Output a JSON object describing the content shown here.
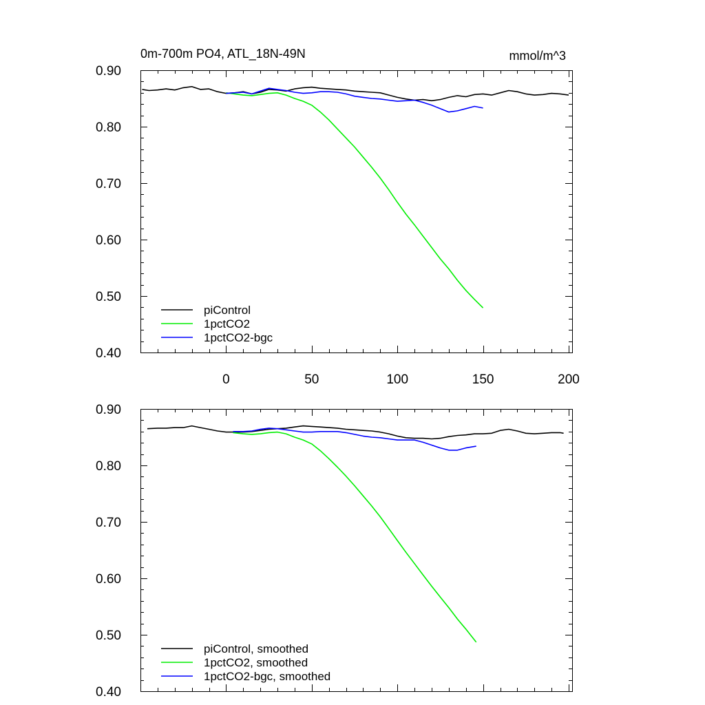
{
  "chart_data": [
    {
      "type": "line",
      "title": "0m-700m PO4, ATL_18N-49N",
      "units": "mmol/m^3",
      "xlim": [
        -50,
        202
      ],
      "ylim": [
        0.4,
        0.9
      ],
      "xticks": [
        "0",
        "50",
        "100",
        "150",
        "200"
      ],
      "yticks": [
        "0.40",
        "0.50",
        "0.60",
        "0.70",
        "0.80",
        "0.90"
      ],
      "legend_position": "bottom-left",
      "grid": false,
      "series": [
        {
          "name": "piControl",
          "color": "#000000",
          "x": [
            -49,
            -45,
            -40,
            -35,
            -30,
            -25,
            -20,
            -15,
            -10,
            -5,
            0,
            5,
            10,
            15,
            20,
            25,
            30,
            35,
            40,
            45,
            50,
            55,
            60,
            65,
            70,
            75,
            80,
            85,
            90,
            95,
            100,
            105,
            110,
            115,
            120,
            125,
            130,
            135,
            140,
            145,
            150,
            155,
            160,
            165,
            170,
            175,
            180,
            185,
            190,
            195,
            200
          ],
          "y": [
            0.866,
            0.864,
            0.865,
            0.867,
            0.865,
            0.869,
            0.871,
            0.866,
            0.867,
            0.862,
            0.859,
            0.86,
            0.862,
            0.858,
            0.861,
            0.866,
            0.865,
            0.863,
            0.867,
            0.869,
            0.87,
            0.868,
            0.867,
            0.866,
            0.865,
            0.863,
            0.862,
            0.861,
            0.86,
            0.856,
            0.852,
            0.849,
            0.847,
            0.848,
            0.846,
            0.848,
            0.852,
            0.855,
            0.853,
            0.857,
            0.858,
            0.856,
            0.86,
            0.864,
            0.862,
            0.858,
            0.856,
            0.857,
            0.859,
            0.858,
            0.856
          ]
        },
        {
          "name": "1pctCO2",
          "color": "#00ee00",
          "x": [
            0,
            5,
            10,
            15,
            20,
            25,
            30,
            35,
            40,
            45,
            50,
            55,
            60,
            65,
            70,
            75,
            80,
            85,
            90,
            95,
            100,
            105,
            110,
            115,
            120,
            125,
            130,
            135,
            140,
            145,
            150
          ],
          "y": [
            0.86,
            0.858,
            0.856,
            0.855,
            0.857,
            0.859,
            0.86,
            0.856,
            0.85,
            0.845,
            0.838,
            0.826,
            0.812,
            0.796,
            0.78,
            0.764,
            0.746,
            0.728,
            0.709,
            0.688,
            0.666,
            0.645,
            0.626,
            0.606,
            0.586,
            0.566,
            0.548,
            0.528,
            0.51,
            0.494,
            0.479
          ]
        },
        {
          "name": "1pctCO2-bgc",
          "color": "#0000ff",
          "x": [
            0,
            5,
            10,
            15,
            20,
            25,
            30,
            35,
            40,
            45,
            50,
            55,
            60,
            65,
            70,
            75,
            80,
            85,
            90,
            95,
            100,
            105,
            110,
            115,
            120,
            125,
            130,
            135,
            140,
            145,
            150
          ],
          "y": [
            0.859,
            0.86,
            0.861,
            0.858,
            0.863,
            0.868,
            0.866,
            0.864,
            0.861,
            0.859,
            0.86,
            0.862,
            0.862,
            0.861,
            0.858,
            0.854,
            0.852,
            0.85,
            0.849,
            0.847,
            0.845,
            0.846,
            0.847,
            0.843,
            0.838,
            0.832,
            0.826,
            0.828,
            0.832,
            0.836,
            0.833
          ]
        }
      ]
    },
    {
      "type": "line",
      "xlim": [
        -50,
        202
      ],
      "ylim": [
        0.4,
        0.9
      ],
      "yticks": [
        "0.40",
        "0.50",
        "0.60",
        "0.70",
        "0.80",
        "0.90"
      ],
      "legend_position": "bottom-left",
      "grid": false,
      "series": [
        {
          "name": "piControl, smoothed",
          "color": "#000000",
          "x": [
            -46,
            -40,
            -35,
            -30,
            -25,
            -20,
            -15,
            -10,
            -5,
            0,
            5,
            10,
            15,
            20,
            25,
            30,
            35,
            40,
            45,
            50,
            55,
            60,
            65,
            70,
            75,
            80,
            85,
            90,
            95,
            100,
            105,
            110,
            115,
            120,
            125,
            130,
            135,
            140,
            145,
            150,
            155,
            160,
            165,
            170,
            175,
            180,
            185,
            190,
            195,
            197
          ],
          "y": [
            0.865,
            0.866,
            0.866,
            0.867,
            0.867,
            0.87,
            0.867,
            0.864,
            0.861,
            0.859,
            0.859,
            0.859,
            0.86,
            0.862,
            0.864,
            0.865,
            0.866,
            0.868,
            0.87,
            0.869,
            0.868,
            0.867,
            0.866,
            0.864,
            0.863,
            0.862,
            0.861,
            0.859,
            0.856,
            0.852,
            0.849,
            0.848,
            0.848,
            0.847,
            0.848,
            0.851,
            0.853,
            0.854,
            0.856,
            0.856,
            0.857,
            0.862,
            0.864,
            0.861,
            0.857,
            0.856,
            0.857,
            0.858,
            0.858,
            0.857
          ]
        },
        {
          "name": "1pctCO2, smoothed",
          "color": "#00ee00",
          "x": [
            4,
            10,
            15,
            20,
            25,
            30,
            35,
            40,
            45,
            50,
            55,
            60,
            65,
            70,
            75,
            80,
            85,
            90,
            95,
            100,
            105,
            110,
            115,
            120,
            125,
            130,
            135,
            140,
            146
          ],
          "y": [
            0.858,
            0.856,
            0.855,
            0.856,
            0.858,
            0.859,
            0.856,
            0.85,
            0.845,
            0.838,
            0.826,
            0.812,
            0.797,
            0.781,
            0.764,
            0.746,
            0.728,
            0.709,
            0.688,
            0.667,
            0.646,
            0.626,
            0.606,
            0.586,
            0.567,
            0.548,
            0.528,
            0.51,
            0.487
          ]
        },
        {
          "name": "1pctCO2-bgc, smoothed",
          "color": "#0000ff",
          "x": [
            4,
            10,
            15,
            20,
            25,
            30,
            35,
            40,
            45,
            50,
            55,
            60,
            65,
            70,
            75,
            80,
            85,
            90,
            95,
            100,
            105,
            110,
            115,
            120,
            125,
            130,
            135,
            140,
            146
          ],
          "y": [
            0.86,
            0.86,
            0.861,
            0.864,
            0.866,
            0.865,
            0.863,
            0.861,
            0.859,
            0.859,
            0.86,
            0.86,
            0.86,
            0.858,
            0.855,
            0.852,
            0.85,
            0.849,
            0.847,
            0.845,
            0.845,
            0.845,
            0.841,
            0.836,
            0.831,
            0.827,
            0.827,
            0.831,
            0.834
          ]
        }
      ]
    }
  ]
}
